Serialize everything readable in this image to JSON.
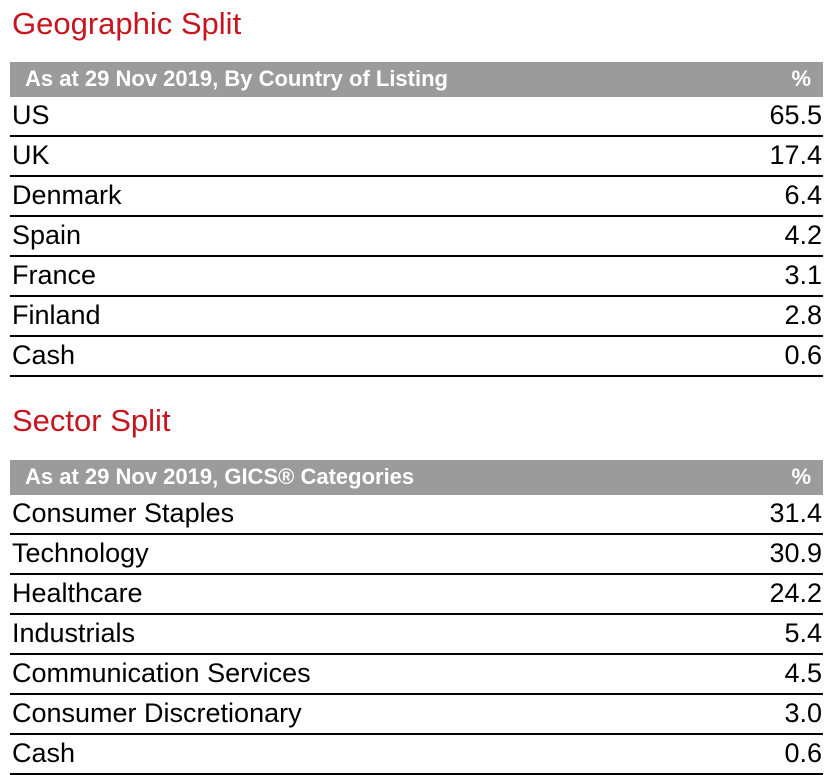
{
  "colors": {
    "title_red": "#c8141e",
    "header_gray": "#9b9b9b",
    "header_text": "#ffffff",
    "row_rule_black": "#000000",
    "body_text": "#000000",
    "background": "#ffffff"
  },
  "geographic": {
    "title": "Geographic Split",
    "header": {
      "label": "As at 29 Nov 2019, By Country of Listing",
      "value": "%"
    },
    "rows": [
      {
        "label": "US",
        "value": "65.5"
      },
      {
        "label": "UK",
        "value": "17.4"
      },
      {
        "label": "Denmark",
        "value": "6.4"
      },
      {
        "label": "Spain",
        "value": "4.2"
      },
      {
        "label": "France",
        "value": "3.1"
      },
      {
        "label": "Finland",
        "value": "2.8"
      },
      {
        "label": "Cash",
        "value": "0.6"
      }
    ]
  },
  "sector": {
    "title": "Sector Split",
    "header": {
      "label": "As at 29 Nov 2019, GICS® Categories",
      "value": "%"
    },
    "rows": [
      {
        "label": "Consumer Staples",
        "value": "31.4"
      },
      {
        "label": "Technology",
        "value": "30.9"
      },
      {
        "label": "Healthcare",
        "value": "24.2"
      },
      {
        "label": "Industrials",
        "value": "5.4"
      },
      {
        "label": "Communication Services",
        "value": "4.5"
      },
      {
        "label": "Consumer Discretionary",
        "value": "3.0"
      },
      {
        "label": "Cash",
        "value": "0.6"
      }
    ]
  }
}
